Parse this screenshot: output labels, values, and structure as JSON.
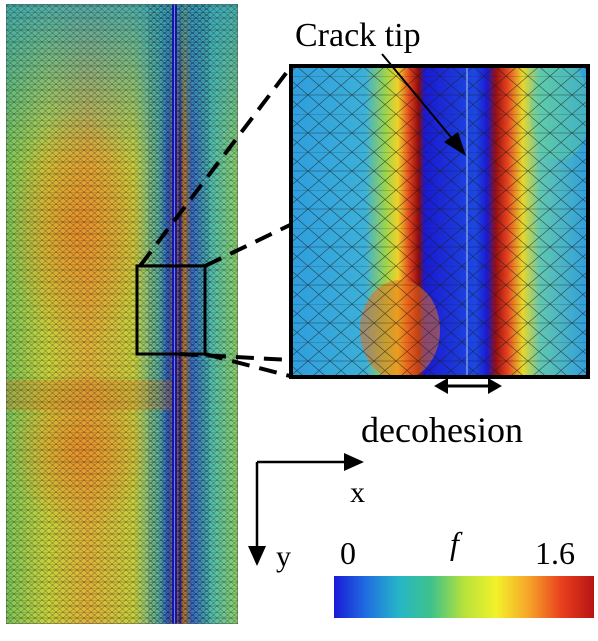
{
  "labels": {
    "crack_tip": "Crack tip",
    "decohesion": "decohesion",
    "axis_x": "x",
    "axis_y": "y",
    "colorbar_symbol": "f",
    "colorbar_min": "0",
    "colorbar_max": "1.6"
  },
  "colormap": {
    "min_value": 0,
    "max_value": 1.6,
    "stops": [
      "#1a1ad8",
      "#1f6fe0",
      "#26b6c8",
      "#3fc28a",
      "#b6e23a",
      "#f3f12a",
      "#f6a42a",
      "#e8401d",
      "#b81414"
    ]
  }
}
